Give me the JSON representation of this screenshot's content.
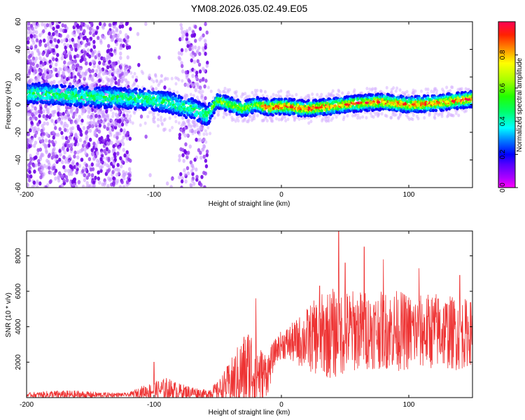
{
  "chart_data": [
    {
      "type": "heatmap",
      "title": "YM08.2026.035.02.49.E05",
      "xlabel": "Height of straight line (km)",
      "ylabel": "Frequency (Hz)",
      "xlim": [
        -200,
        150
      ],
      "ylim": [
        -60,
        60
      ],
      "xticks": [
        -200,
        -100,
        0,
        100
      ],
      "yticks": [
        60,
        40,
        20,
        0,
        -20,
        -40,
        -60
      ],
      "grid": false,
      "colorbar": {
        "label": "Normalized spectral amplitude",
        "range": [
          0,
          1
        ],
        "ticks": [
          0.0,
          0.2,
          0.4,
          0.6,
          0.8
        ]
      },
      "ridge": {
        "description_points_x": [
          -190,
          -160,
          -130,
          -110,
          -90,
          -70,
          -58,
          -50,
          -40,
          -30,
          -20,
          -10,
          0,
          20,
          40,
          60,
          80,
          100,
          120,
          140,
          150
        ],
        "frequency_hz": [
          8,
          6,
          5,
          4,
          2,
          -3,
          -8,
          3,
          0,
          -3,
          0,
          -2,
          -1,
          -3,
          -1,
          1,
          2,
          0,
          1,
          3,
          4
        ]
      }
    },
    {
      "type": "line",
      "xlabel": "Height of straight line (km)",
      "ylabel": "SNR (10 * v/v)",
      "xlim": [
        -200,
        150
      ],
      "ylim": [
        0,
        9400
      ],
      "xticks": [
        -200,
        -100,
        0,
        100
      ],
      "yticks": [
        8000,
        6000,
        4000,
        2000
      ],
      "grid": false,
      "series": [
        {
          "color": "#ee3333",
          "envelope": {
            "x": [
              -200,
              -180,
              -160,
              -140,
              -120,
              -110,
              -100,
              -90,
              -80,
              -70,
              -60,
              -50,
              -40,
              -30,
              -25,
              -20,
              -15,
              -10,
              -5,
              0,
              10,
              20,
              30,
              40,
              50,
              60,
              70,
              80,
              90,
              100,
              110,
              120,
              130,
              140,
              150
            ],
            "base": [
              150,
              160,
              150,
              150,
              160,
              300,
              400,
              450,
              350,
              300,
              200,
              400,
              800,
              1400,
              1600,
              1500,
              1200,
              1500,
              2600,
              3000,
              3100,
              3300,
              3500,
              3600,
              3700,
              3800,
              3800,
              3800,
              3800,
              3700,
              3700,
              3800,
              3700,
              3600,
              3700
            ],
            "spread": [
              100,
              250,
              250,
              150,
              100,
              350,
              500,
              700,
              450,
              350,
              250,
              500,
              1300,
              2200,
              2600,
              2300,
              1500,
              1200,
              700,
              800,
              1200,
              1800,
              2300,
              2600,
              2400,
              2300,
              2200,
              2200,
              2300,
              2200,
              2100,
              2200,
              2100,
              2100,
              1800
            ]
          },
          "peaks": [
            [
              -100,
              2000
            ],
            [
              -20,
              5600
            ],
            [
              30,
              6300
            ],
            [
              45,
              9400
            ],
            [
              50,
              7600
            ],
            [
              65,
              8500
            ],
            [
              80,
              7800
            ],
            [
              108,
              7300
            ],
            [
              140,
              6900
            ]
          ]
        }
      ]
    }
  ],
  "colors": {
    "line": "#ee3333",
    "colormap": [
      "#ffffff",
      "#e6c8ff",
      "#c080ff",
      "#8a2be2",
      "#5500dd",
      "#0000ff",
      "#0088ff",
      "#00ffff",
      "#00ff66",
      "#66ff00",
      "#ffff00",
      "#ffaa00",
      "#ff3300",
      "#ff0066",
      "#ff00cc"
    ]
  }
}
